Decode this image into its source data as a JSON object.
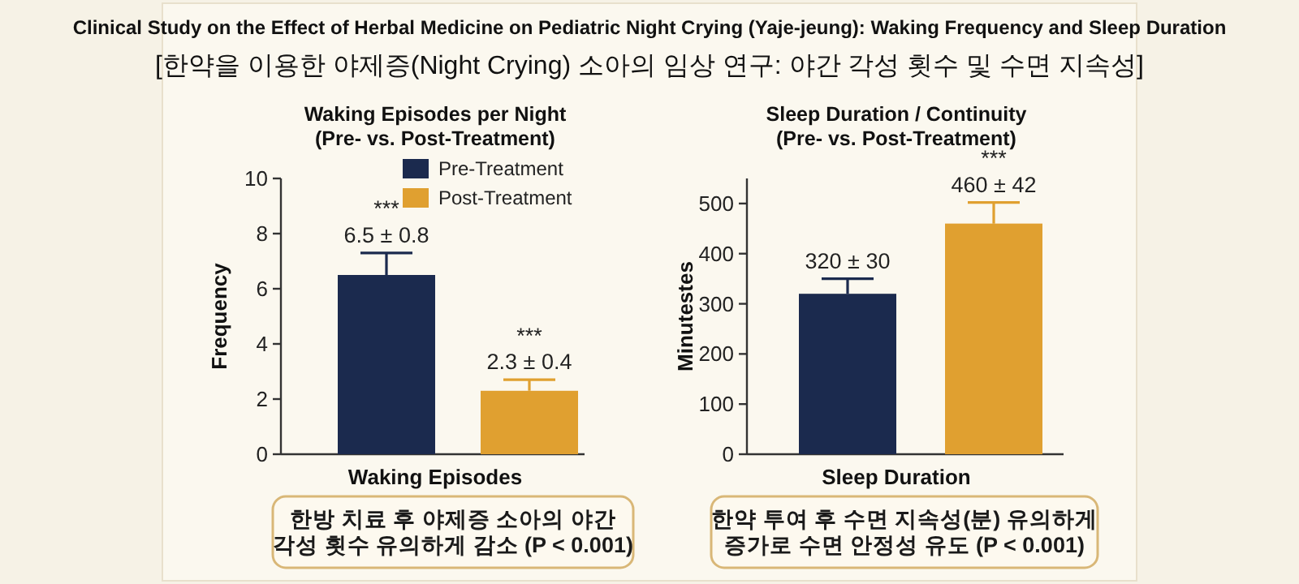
{
  "chart_data": [
    {
      "type": "other",
      "title": "Clinical Study on the Effect of Herbal Medicine on Pediatric Night Crying (Yaje-jeung): Waking Frequency and Sleep Duration",
      "subtitle": "[한약을 이용한 야제증(Night Crying) 소아의 임상 연구: 야간 각성 횟수 및 수면 지속성]"
    },
    {
      "type": "bar",
      "title": "Waking Episodes per Night\n(Pre- vs. Post-Treatment)",
      "xlabel": "Waking Episodes",
      "ylabel": "Frequency",
      "categories": [
        null
      ],
      "ylim": [
        0,
        10
      ],
      "yticks": [
        0,
        2,
        4,
        6,
        8,
        10
      ],
      "legend": "top right",
      "series": [
        {
          "name": "Pre-Treatment",
          "color": "#1b2a4e",
          "values": [
            6.5
          ],
          "errors": [
            0.8
          ],
          "value_labels": [
            "***\n6.5 ± 0.8"
          ]
        },
        {
          "name": "Post-Treatment",
          "color": "#e0a030",
          "values": [
            2.3
          ],
          "errors": [
            0.4
          ],
          "value_labels": [
            "***\n2.3 ± 0.4"
          ]
        }
      ],
      "annotations": [
        "한방 치료 후 야제증 소아의 야간\n각성 횟수 유의하게 감소 (P < 0.001)"
      ]
    },
    {
      "type": "bar",
      "title": "Sleep Duration / Continuity\n(Pre- vs. Post-Treatment)",
      "xlabel": "Sleep Duration",
      "ylabel": "Minutestes",
      "categories": [
        null
      ],
      "ylim": [
        0,
        550
      ],
      "yticks": [
        0,
        100,
        200,
        300,
        400,
        500
      ],
      "series": [
        {
          "color": "#1b2a4e",
          "values": [
            320
          ],
          "errors": [
            30
          ],
          "value_labels": [
            "320 ± 30"
          ]
        },
        {
          "color": "#e0a030",
          "values": [
            460
          ],
          "errors": [
            42
          ],
          "value_labels": [
            "***\n460 ± 42"
          ]
        }
      ],
      "annotations": [
        "한약 투여 후 수면 지속성(분) 유의하게\n증가로 수면 안정성 유도 (P < 0.001)"
      ]
    }
  ]
}
